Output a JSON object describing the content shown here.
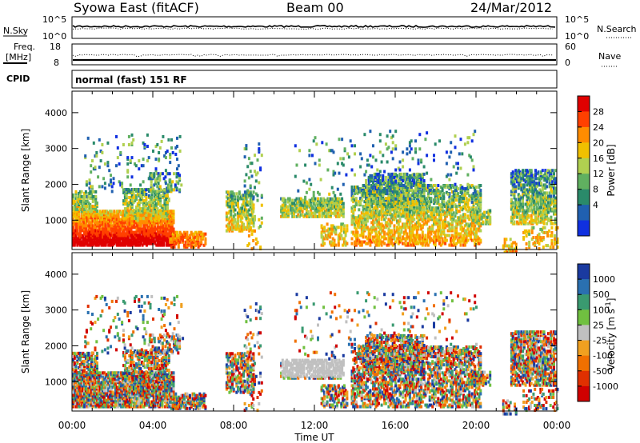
{
  "header": {
    "station": "Syowa East (fitACF)",
    "beam": "Beam 00",
    "date": "24/Mar/2012"
  },
  "strips": {
    "nsky_label": "N.Sky",
    "nsearch_label": "N.Search",
    "nsky_ticks": [
      "10^5",
      "10^0"
    ],
    "nsearch_ticks": [
      "10^5",
      "10^0"
    ],
    "freq_label": [
      "Freq.",
      "[MHz]"
    ],
    "freq_ticks": [
      "18",
      "8"
    ],
    "nave_label": "Nave",
    "nave_ticks": [
      "60",
      "0"
    ],
    "cpid_label": "CPID",
    "cpid_text": "normal (fast) 151 RF"
  },
  "chart_data": [
    {
      "type": "heatmap",
      "name": "power",
      "ylabel": "Slant Range [km]",
      "xlabel": "",
      "y_ticks": [
        1000,
        2000,
        3000,
        4000
      ],
      "ylim": [
        180,
        4600
      ],
      "x_tick_labels": [
        "00:00",
        "04:00",
        "08:00",
        "12:00",
        "16:00",
        "20:00",
        "00:00"
      ],
      "colorbar": {
        "label": "Power [dB]",
        "ticks": [
          "28",
          "24",
          "20",
          "16",
          "12",
          "8",
          "4"
        ],
        "colors": [
          "#e00000",
          "#ff4000",
          "#ff8c00",
          "#f0c000",
          "#b0d050",
          "#60b060",
          "#2a8a6a",
          "#2060b0",
          "#1030e0"
        ]
      }
    },
    {
      "type": "heatmap",
      "name": "velocity",
      "ylabel": "Slant Range [km]",
      "xlabel": "Time UT",
      "y_ticks": [
        1000,
        2000,
        3000,
        4000
      ],
      "ylim": [
        180,
        4600
      ],
      "x_tick_labels": [
        "00:00",
        "04:00",
        "08:00",
        "12:00",
        "16:00",
        "20:00",
        "00:00"
      ],
      "colorbar": {
        "label": "Velocity [m s",
        "label_sup": "-1",
        "label_end": "]",
        "ticks": [
          "1000",
          "500",
          "100",
          "25",
          "-25",
          "-100",
          "-500",
          "-1000"
        ],
        "colors": [
          "#1a3aa0",
          "#2a70b0",
          "#3a9a70",
          "#70c040",
          "#c0c0c0",
          "#f0a020",
          "#f07000",
          "#e03000",
          "#d00000"
        ]
      }
    }
  ]
}
